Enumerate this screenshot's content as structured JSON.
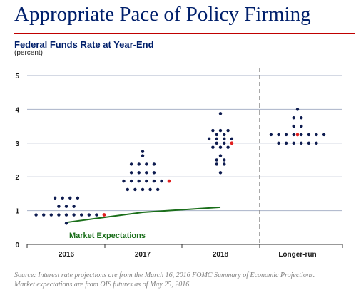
{
  "header": {
    "title": "Appropriate Pace of Policy Firming",
    "subtitle": "Federal Funds Rate at Year-End",
    "unit": "(percent)"
  },
  "source": {
    "line1": "Source: Interest rate projections are from the March 16, 2016 FOMC Summary of Economic Projections.",
    "line2": "Market expectations are from OIS futures as of May 25, 2016."
  },
  "colors": {
    "title": "#001f6b",
    "rule": "#c00000",
    "dot": "#0d1b4f",
    "median_dot": "#e02020",
    "market_line": "#1a6e1a",
    "grid": "#aab3c8",
    "divider": "#8c8c8c"
  },
  "chart_data": {
    "type": "scatter",
    "title": "Federal Funds Rate at Year-End",
    "ylabel": "(percent)",
    "ylim": [
      0,
      5
    ],
    "yticks": [
      "0",
      "1",
      "2",
      "3",
      "4",
      "5"
    ],
    "grid": true,
    "categories": [
      "2016",
      "2017",
      "2018",
      "Longer-run"
    ],
    "projections": [
      {
        "category": "2016",
        "median": 0.875,
        "dots": [
          {
            "value": 1.375,
            "count": 4
          },
          {
            "value": 1.125,
            "count": 3
          },
          {
            "value": 0.875,
            "count": 9
          },
          {
            "value": 0.625,
            "count": 1
          }
        ]
      },
      {
        "category": "2017",
        "median": 1.875,
        "dots": [
          {
            "value": 2.75,
            "count": 1
          },
          {
            "value": 2.625,
            "count": 1
          },
          {
            "value": 2.375,
            "count": 4
          },
          {
            "value": 2.125,
            "count": 4
          },
          {
            "value": 1.875,
            "count": 6
          },
          {
            "value": 1.625,
            "count": 5
          }
        ]
      },
      {
        "category": "2018",
        "median": 3.0,
        "dots": [
          {
            "value": 3.875,
            "count": 1
          },
          {
            "value": 3.375,
            "count": 3
          },
          {
            "value": 3.25,
            "count": 2
          },
          {
            "value": 3.125,
            "count": 4
          },
          {
            "value": 3.0,
            "count": 2
          },
          {
            "value": 2.875,
            "count": 3
          },
          {
            "value": 2.625,
            "count": 1
          },
          {
            "value": 2.5,
            "count": 2
          },
          {
            "value": 2.375,
            "count": 2
          },
          {
            "value": 2.125,
            "count": 1
          }
        ]
      },
      {
        "category": "Longer-run",
        "median": 3.25,
        "dots": [
          {
            "value": 4.0,
            "count": 1
          },
          {
            "value": 3.75,
            "count": 2
          },
          {
            "value": 3.5,
            "count": 2
          },
          {
            "value": 3.25,
            "count": 8
          },
          {
            "value": 3.0,
            "count": 6
          }
        ]
      }
    ],
    "series": [
      {
        "name": "Market Expectations",
        "x": [
          "2016",
          "2017",
          "2018"
        ],
        "values": [
          0.65,
          0.95,
          1.1
        ]
      }
    ]
  }
}
